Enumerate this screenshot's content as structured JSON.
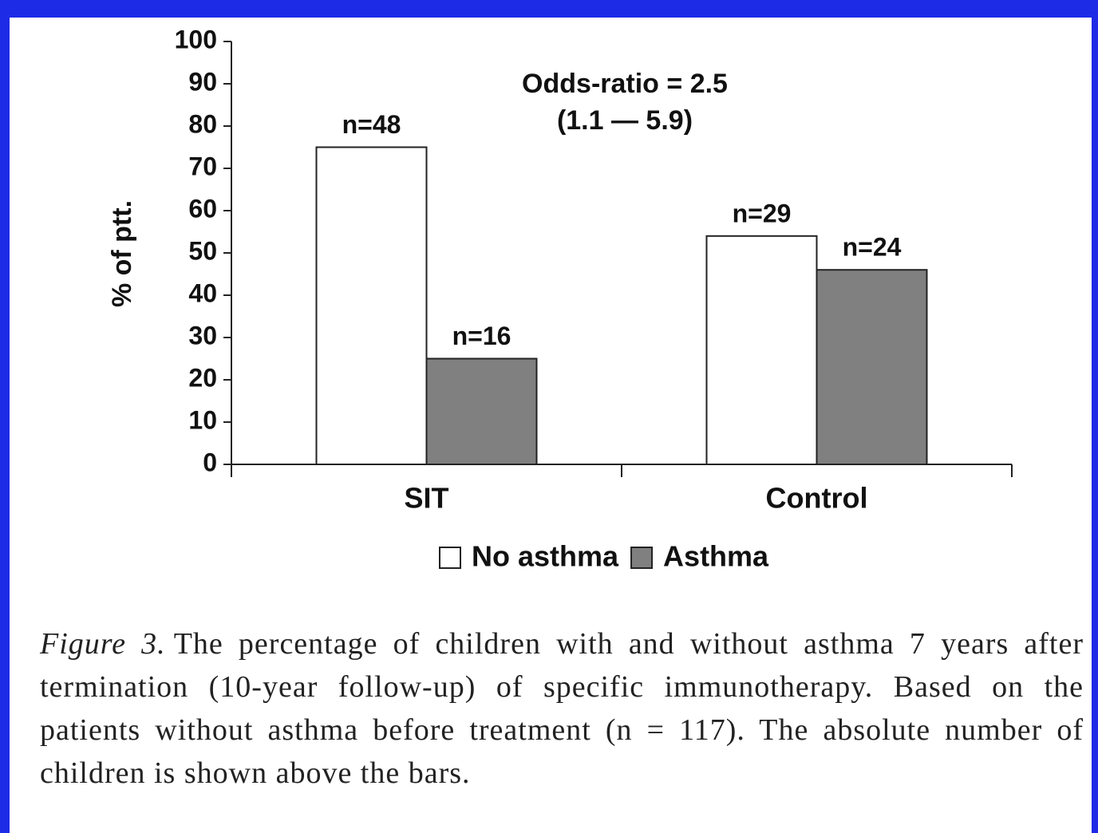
{
  "chart_data": {
    "type": "bar",
    "y_label": "% of ptt.",
    "annotations": [
      "Odds-ratio = 2.5",
      "(1.1 — 5.9)"
    ],
    "categories": [
      "SIT",
      "Control"
    ],
    "series": [
      {
        "name": "No asthma",
        "color": "#ffffff",
        "values": [
          75,
          54
        ],
        "count_labels": [
          "n=48",
          "n=29"
        ]
      },
      {
        "name": "Asthma",
        "color": "#808080",
        "values": [
          25,
          46
        ],
        "count_labels": [
          "n=16",
          "n=24"
        ]
      }
    ],
    "ylim": [
      0,
      100
    ],
    "yticks": [
      0,
      10,
      20,
      30,
      40,
      50,
      60,
      70,
      80,
      90,
      100
    ],
    "caption": {
      "label": "Figure 3.",
      "text": "The percentage of children with and without asthma 7 years after termination (10-year follow-up) of specific immunotherapy. Based on the patients without asthma before treatment (n = 117). The absolute number of children is shown above the bars."
    }
  }
}
